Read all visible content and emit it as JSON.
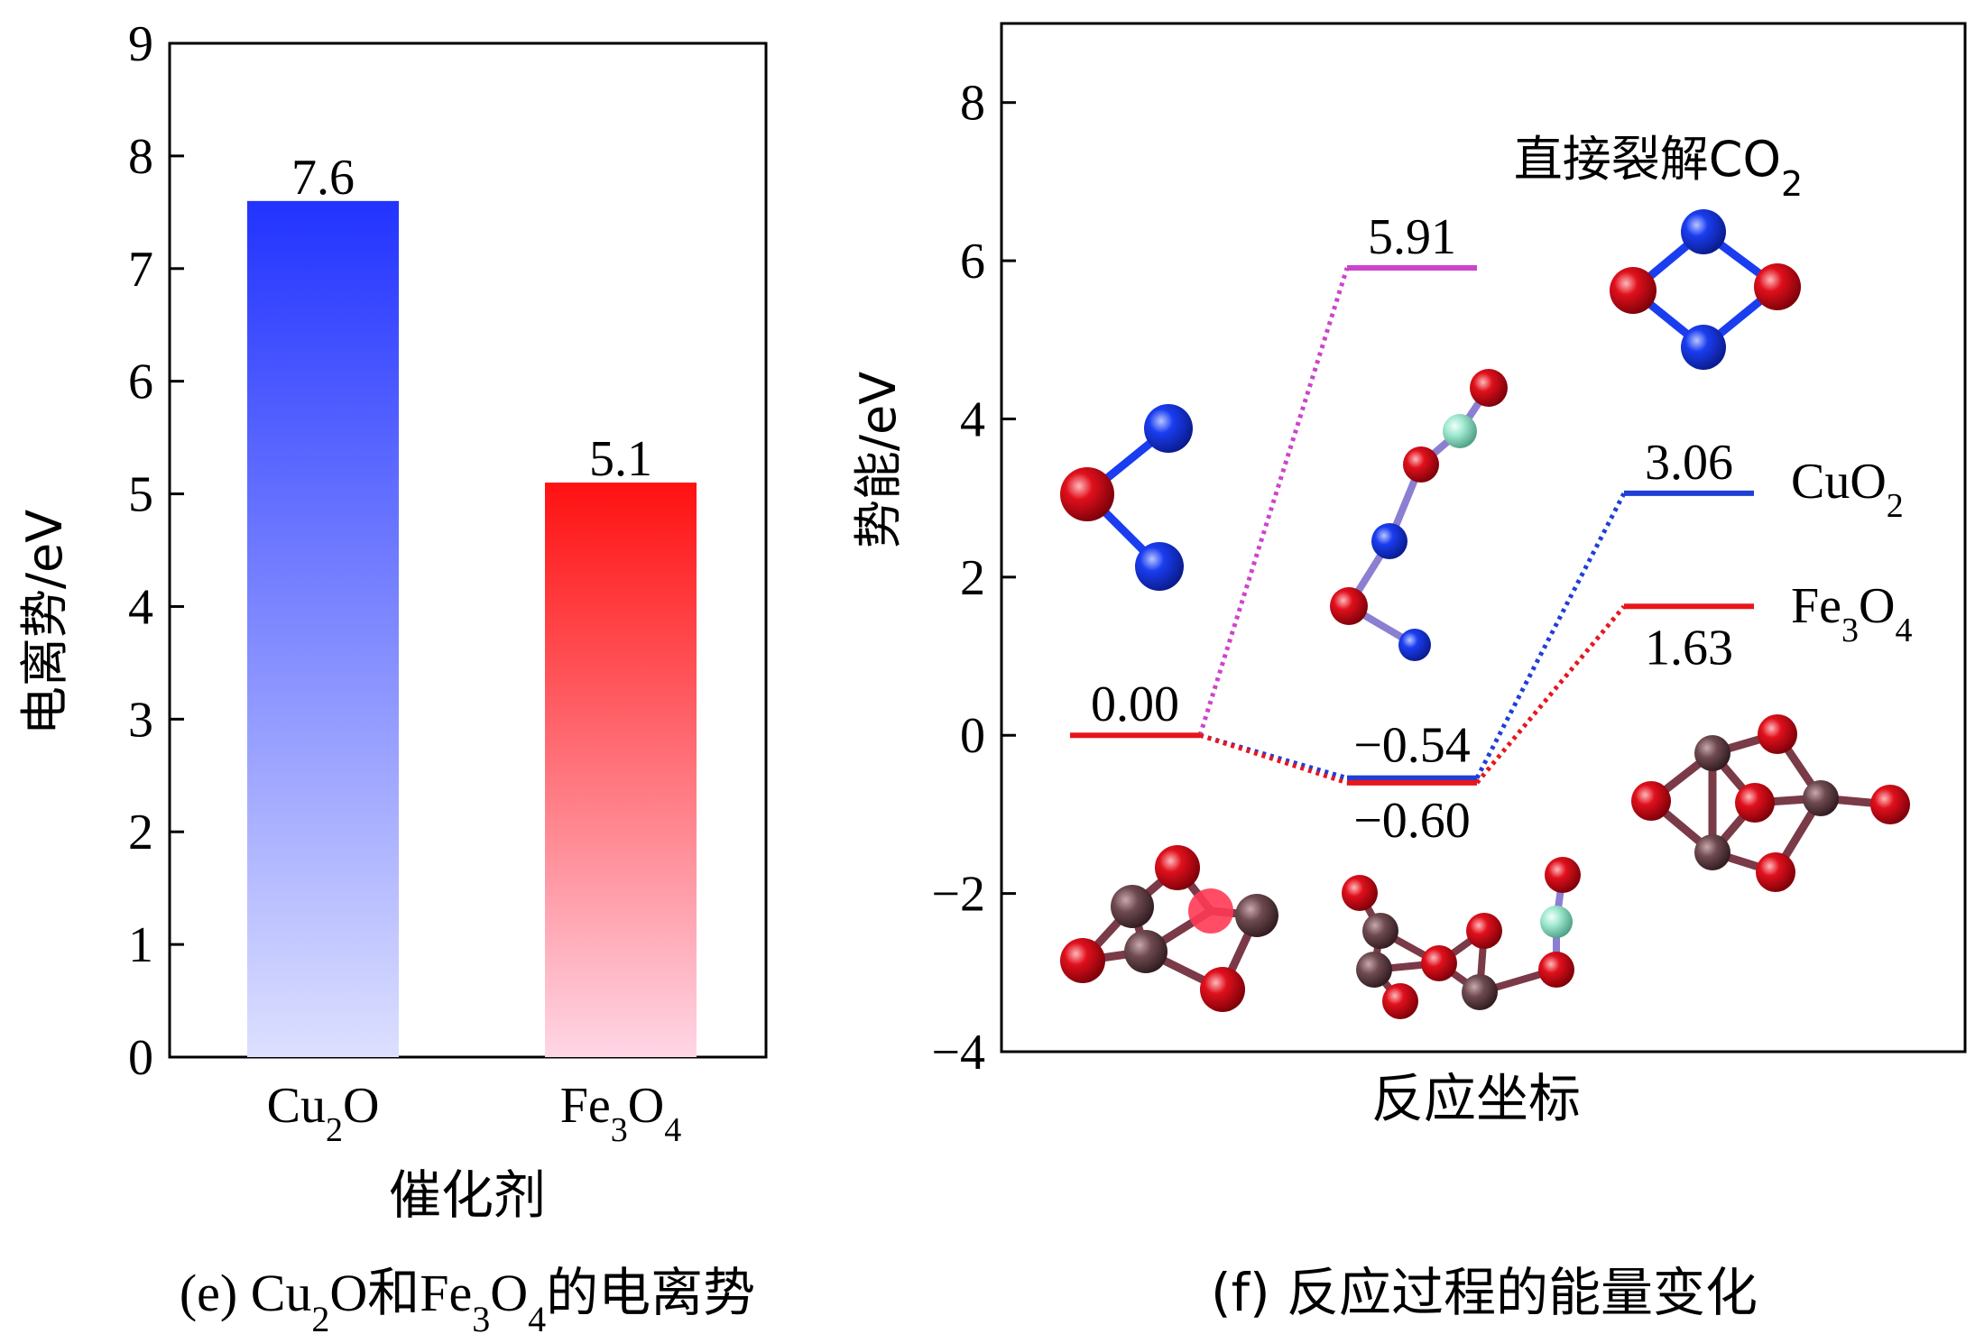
{
  "panel_e": {
    "caption": {
      "prefix": "(e) ",
      "formula1": {
        "base": "Cu",
        "sub": "2",
        "tail": "O"
      },
      "conj": "和",
      "formula2": {
        "base": "Fe",
        "sub1": "3",
        "mid": "O",
        "sub2": "4"
      },
      "suffix": "的电离势"
    }
  },
  "panel_f": {
    "caption": "(f) 反应过程的能量变化",
    "title": {
      "text": "直接裂解CO",
      "sub": "2"
    },
    "labels": {
      "cuo2": {
        "base": "CuO",
        "sub": "2"
      },
      "fe3o4": {
        "base": "Fe",
        "sub1": "3",
        "mid": "O",
        "sub2": "4"
      }
    }
  },
  "colors": {
    "cu2o_top": "#2233ff",
    "cu2o_bottom": "#dde0ff",
    "fe3o4_top": "#ff1111",
    "fe3o4_bottom": "#ffd6e6",
    "cuo2_line": "#1f3fd6",
    "fe3o4_line": "#e8161c",
    "direct_line": "#cc44cc",
    "atom_blue": "#1a3df0",
    "atom_red": "#e0101c",
    "atom_mint": "#9fe8cf",
    "atom_brown": "#6e4a50"
  },
  "chart_data": [
    {
      "type": "bar",
      "categories": [
        "Cu₂O",
        "Fe₃O₄"
      ],
      "values": [
        7.6,
        5.1
      ],
      "value_labels": [
        "7.6",
        "5.1"
      ],
      "xlabel": "催化剂",
      "ylabel": "电离势/eV",
      "ylim": [
        0,
        9
      ],
      "yticks": [
        0,
        1,
        2,
        3,
        4,
        5,
        6,
        7,
        8,
        9
      ],
      "colors": [
        "#2233ff",
        "#ff1111"
      ]
    },
    {
      "type": "line",
      "xlabel": "反应坐标",
      "ylabel": "势能/eV",
      "ylim": [
        -4,
        9
      ],
      "yticks": [
        -4,
        -2,
        0,
        2,
        4,
        6,
        8
      ],
      "series": [
        {
          "name": "CuO₂",
          "color": "#1f3fd6",
          "levels": [
            0.0,
            -0.54,
            3.06
          ],
          "labels": [
            "0.00",
            "−0.54",
            "3.06"
          ]
        },
        {
          "name": "Fe₃O₄",
          "color": "#e8161c",
          "levels": [
            0.0,
            -0.6,
            1.63
          ],
          "labels": [
            "0.00",
            "−0.60",
            "1.63"
          ]
        },
        {
          "name": "直接裂解CO₂",
          "color": "#cc44cc",
          "levels": [
            0.0,
            5.91
          ],
          "labels": [
            "0.00",
            "5.91"
          ]
        }
      ]
    }
  ]
}
